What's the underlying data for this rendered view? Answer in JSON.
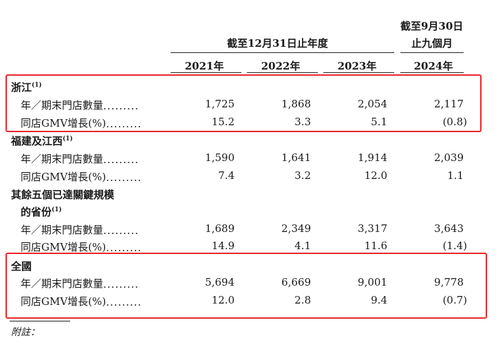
{
  "header": {
    "period_a": "截至12月31日止年度",
    "period_b_line1": "截至9月30日",
    "period_b_line2": "止九個月",
    "years": [
      "2021年",
      "2022年",
      "2023年",
      "2024年"
    ]
  },
  "dots": ".........",
  "sections": [
    {
      "name": "浙江",
      "note_mark": "(1)",
      "rows": [
        {
          "label": "年／期末門店數量",
          "values": [
            "1,725",
            "1,868",
            "2,054",
            "2,117"
          ]
        },
        {
          "label": "同店GMV增長(%)",
          "values": [
            "15.2",
            "3.3",
            "5.1",
            "(0.8)"
          ]
        }
      ]
    },
    {
      "name": "福建及江西",
      "note_mark": "(1)",
      "rows": [
        {
          "label": "年／期末門店數量",
          "values": [
            "1,590",
            "1,641",
            "1,914",
            "2,039"
          ]
        },
        {
          "label": "同店GMV增長(%)",
          "values": [
            "7.4",
            "3.2",
            "12.0",
            "1.1"
          ]
        }
      ]
    },
    {
      "name_line1": "其餘五個已達關鍵規模",
      "name_line2": "的省份",
      "note_mark": "(1)",
      "rows": [
        {
          "label": "年／期末門店數量",
          "values": [
            "1,689",
            "2,349",
            "3,317",
            "3,643"
          ]
        },
        {
          "label": "同店GMV增長(%)",
          "values": [
            "14.9",
            "4.1",
            "11.6",
            "(1.4)"
          ]
        }
      ]
    },
    {
      "name": "全國",
      "rows": [
        {
          "label": "年／期末門店數量",
          "values": [
            "5,694",
            "6,669",
            "9,001",
            "9,778"
          ]
        },
        {
          "label": "同店GMV增長(%)",
          "values": [
            "12.0",
            "2.8",
            "9.4",
            "(0.7)"
          ]
        }
      ]
    }
  ],
  "footnote": "附註：",
  "highlight_color": "#e8262a"
}
